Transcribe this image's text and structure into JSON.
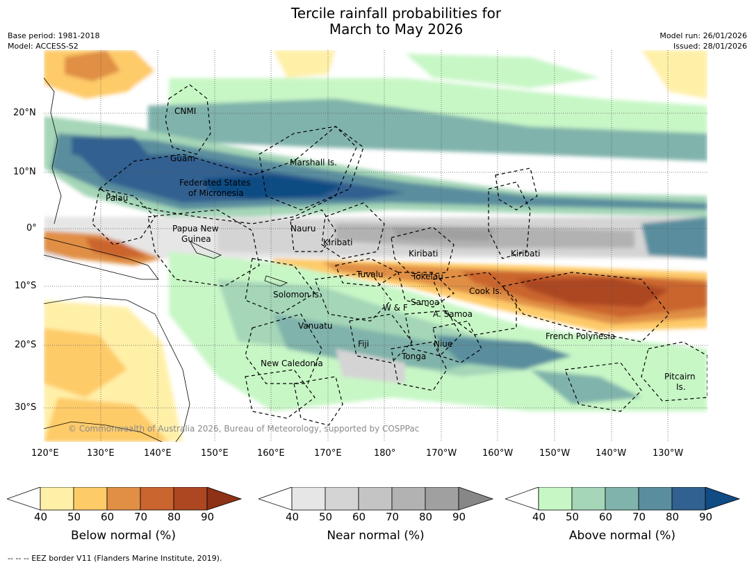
{
  "title_line1": "Tercile rainfall probabilities for",
  "title_line2": "March to May 2026",
  "meta_left": [
    "Base period: 1981-2018",
    "Model: ACCESS-S2"
  ],
  "meta_right": [
    "Model run: 26/01/2026",
    "Issued: 28/01/2026"
  ],
  "lat_labels": [
    "20°N",
    "10°N",
    "0°",
    "10°S",
    "20°S",
    "30°S"
  ],
  "lon_labels": [
    "120°E",
    "130°E",
    "140°E",
    "150°E",
    "160°E",
    "170°E",
    "180°",
    "170°W",
    "160°W",
    "150°W",
    "140°W",
    "130°W"
  ],
  "credit": "© Commonwealth of Australia 2026, Bureau of Meteorology, supported by COSPPac",
  "regions": [
    "CNMI",
    "Guam",
    "Marshall Is.",
    "Federated States",
    "of Micronesia",
    "Palau",
    "Papua New",
    "Guinea",
    "Nauru",
    "Kiribati",
    "Kiribati",
    "Kiribati",
    "Tuvalu",
    "Tokelau",
    "Cook Is.",
    "Solomon Is.",
    "Samoa",
    "W & F",
    "A. Samoa",
    "Vanuatu",
    "Fiji",
    "Niue",
    "French Polynesia",
    "Tonga",
    "New Caledonia",
    "Pitcairn",
    "Is."
  ],
  "colorbars": [
    {
      "label": "Below normal (%)",
      "ticks": [
        "40",
        "50",
        "60",
        "70",
        "80",
        "90"
      ],
      "colors": [
        "#ffffff",
        "#fff0a8",
        "#fecb69",
        "#e08f45",
        "#cb652f",
        "#ac4722",
        "#8d3117"
      ]
    },
    {
      "label": "Near normal (%)",
      "ticks": [
        "40",
        "50",
        "60",
        "70",
        "80",
        "90"
      ],
      "colors": [
        "#ffffff",
        "#e6e6e6",
        "#d4d4d4",
        "#c4c4c4",
        "#b2b2b2",
        "#a0a0a0",
        "#878787"
      ]
    },
    {
      "label": "Above normal (%)",
      "ticks": [
        "40",
        "50",
        "60",
        "70",
        "80",
        "90"
      ],
      "colors": [
        "#ffffff",
        "#c8f7c6",
        "#a4d6b7",
        "#80b3ab",
        "#5a8e9e",
        "#316190",
        "#104b83"
      ]
    }
  ],
  "footnote": "--  --  -- EEZ border V11 (Flanders Marine Institute, 2019)."
}
